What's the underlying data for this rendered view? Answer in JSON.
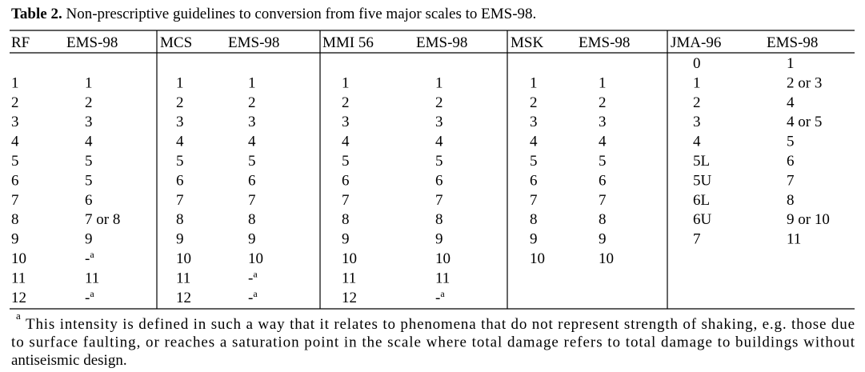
{
  "caption": {
    "label": "Table 2.",
    "text": " Non-prescriptive guidelines to conversion from five major scales to EMS-98."
  },
  "table": {
    "header": [
      "RF",
      "EMS-98",
      "MCS",
      "EMS-98",
      "MMI 56",
      "EMS-98",
      "MSK",
      "EMS-98",
      "JMA-96",
      "EMS-98"
    ],
    "rows": [
      [
        null,
        null,
        null,
        null,
        null,
        null,
        null,
        null,
        "0",
        "1"
      ],
      [
        "1",
        "1",
        "1",
        "1",
        "1",
        "1",
        "1",
        "1",
        "1",
        "2 or 3"
      ],
      [
        "2",
        "2",
        "2",
        "2",
        "2",
        "2",
        "2",
        "2",
        "2",
        "4"
      ],
      [
        "3",
        "3",
        "3",
        "3",
        "3",
        "3",
        "3",
        "3",
        "3",
        "4 or 5"
      ],
      [
        "4",
        "4",
        "4",
        "4",
        "4",
        "4",
        "4",
        "4",
        "4",
        "5"
      ],
      [
        "5",
        "5",
        "5",
        "5",
        "5",
        "5",
        "5",
        "5",
        "5L",
        "6"
      ],
      [
        "6",
        "5",
        "6",
        "6",
        "6",
        "6",
        "6",
        "6",
        "5U",
        "7"
      ],
      [
        "7",
        "6",
        "7",
        "7",
        "7",
        "7",
        "7",
        "7",
        "6L",
        "8"
      ],
      [
        "8",
        "7 or 8",
        "8",
        "8",
        "8",
        "8",
        "8",
        "8",
        "6U",
        "9 or 10"
      ],
      [
        "9",
        "9",
        "9",
        "9",
        "9",
        "9",
        "9",
        "9",
        "7",
        "11"
      ],
      [
        "10",
        {
          "text": "-",
          "sup": "a"
        },
        "10",
        "10",
        "10",
        "10",
        "10",
        "10",
        null,
        null
      ],
      [
        "11",
        "11",
        "11",
        {
          "text": "-",
          "sup": "a"
        },
        "11",
        "11",
        null,
        null,
        null,
        null
      ],
      [
        "12",
        {
          "text": "-",
          "sup": "a"
        },
        "12",
        {
          "text": "-",
          "sup": "a"
        },
        "12",
        {
          "text": "-",
          "sup": "a"
        },
        null,
        null,
        null,
        null
      ]
    ]
  },
  "footnote": {
    "mark": "a",
    "lines": [
      "This intensity is defined in such a way that it relates to phenomena that do not represent strength of shaking, e.g. those due",
      "to surface faulting, or reaches a saturation point in the scale where total damage refers to total damage to buildings without",
      "antiseismic design."
    ]
  }
}
